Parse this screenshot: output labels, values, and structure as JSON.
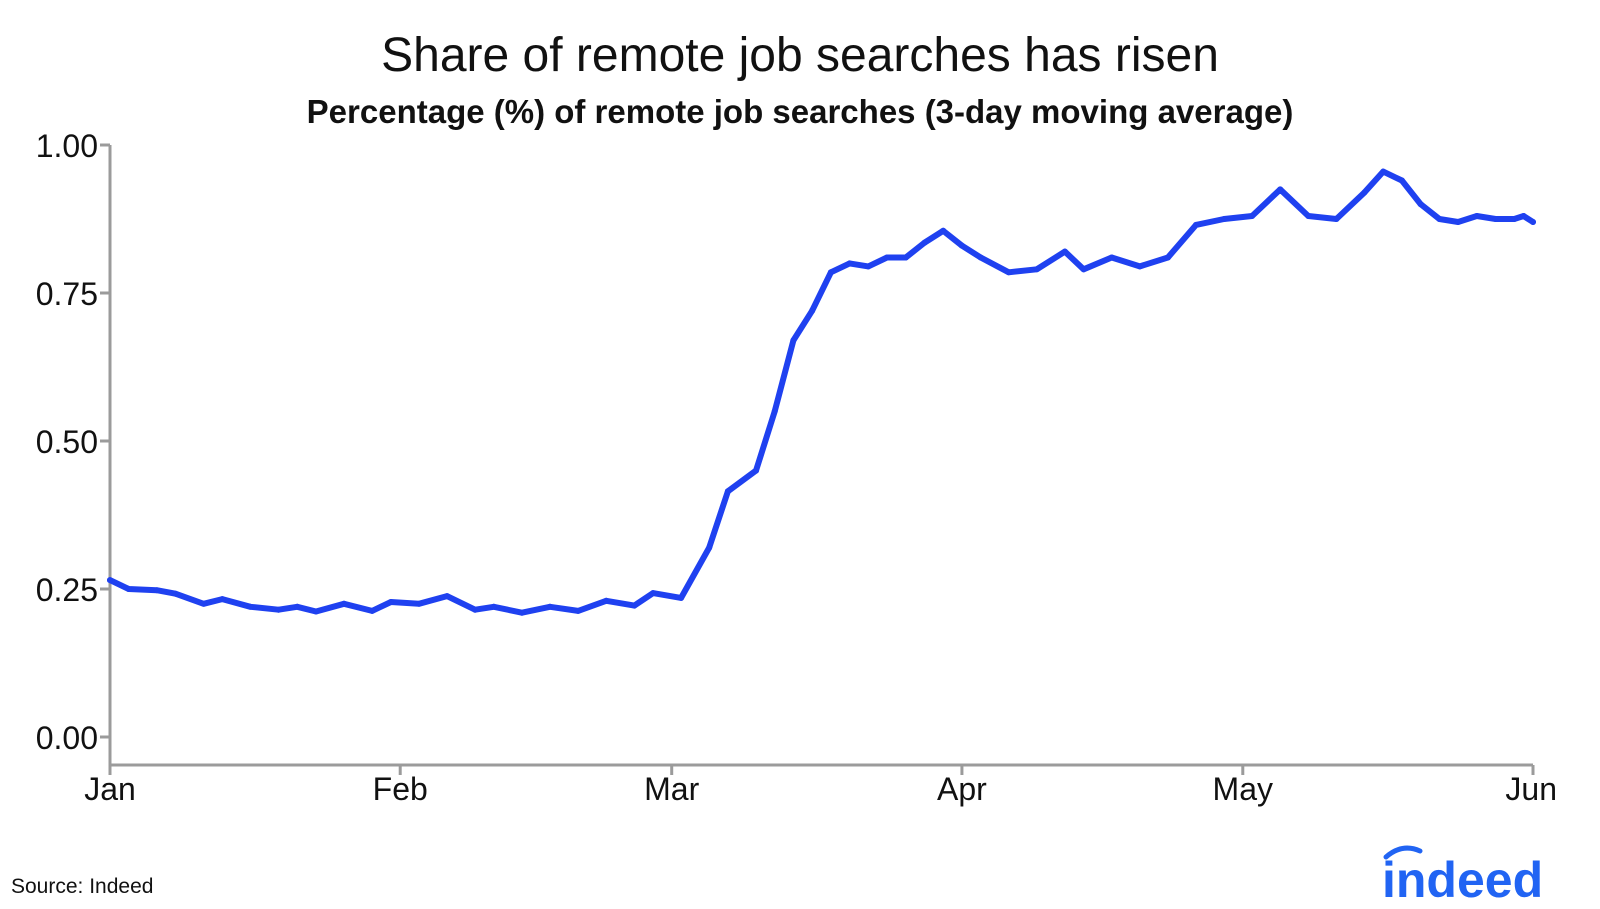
{
  "title": "Share of remote job searches has risen",
  "subtitle": "Percentage (%) of remote job searches (3-day moving average)",
  "source": "Source: Indeed",
  "logo_text": "indeed",
  "colors": {
    "line": "#1f41f0",
    "axis": "#9b9b9b",
    "text": "#111111",
    "logo": "#2164f3"
  },
  "chart_data": {
    "type": "line",
    "title": "Share of remote job searches has risen",
    "subtitle": "Percentage (%) of remote job searches (3-day moving average)",
    "xlabel": "",
    "ylabel": "",
    "xlim": [
      "Jan",
      "Jun"
    ],
    "ylim": [
      0,
      1.0
    ],
    "x_ticks": [
      "Jan",
      "Feb",
      "Mar",
      "Apr",
      "May",
      "Jun"
    ],
    "y_ticks": [
      "0.00",
      "0.25",
      "0.50",
      "0.75",
      "1.00"
    ],
    "grid": false,
    "legend": "none",
    "series": [
      {
        "name": "",
        "x": [
          "Jan 1",
          "Jan 3",
          "Jan 6",
          "Jan 8",
          "Jan 11",
          "Jan 13",
          "Jan 16",
          "Jan 19",
          "Jan 21",
          "Jan 23",
          "Jan 26",
          "Jan 29",
          "Jan 31",
          "Feb 3",
          "Feb 6",
          "Feb 9",
          "Feb 11",
          "Feb 14",
          "Feb 17",
          "Feb 20",
          "Feb 23",
          "Feb 26",
          "Feb 28",
          "Mar 2",
          "Mar 5",
          "Mar 7",
          "Mar 10",
          "Mar 12",
          "Mar 14",
          "Mar 16",
          "Mar 18",
          "Mar 20",
          "Mar 22",
          "Mar 24",
          "Mar 26",
          "Mar 28",
          "Mar 30",
          "Apr 1",
          "Apr 3",
          "Apr 6",
          "Apr 9",
          "Apr 12",
          "Apr 14",
          "Apr 17",
          "Apr 20",
          "Apr 23",
          "Apr 26",
          "Apr 29",
          "May 2",
          "May 5",
          "May 8",
          "May 11",
          "May 14",
          "May 16",
          "May 18",
          "May 20",
          "May 22",
          "May 24",
          "May 26",
          "May 28",
          "May 30",
          "May 31",
          "Jun 1"
        ],
        "values": [
          0.265,
          0.25,
          0.248,
          0.242,
          0.225,
          0.233,
          0.22,
          0.215,
          0.22,
          0.212,
          0.225,
          0.213,
          0.228,
          0.225,
          0.238,
          0.215,
          0.22,
          0.21,
          0.22,
          0.213,
          0.23,
          0.222,
          0.243,
          0.235,
          0.32,
          0.415,
          0.45,
          0.55,
          0.67,
          0.72,
          0.785,
          0.8,
          0.795,
          0.81,
          0.81,
          0.835,
          0.855,
          0.83,
          0.81,
          0.785,
          0.79,
          0.82,
          0.79,
          0.81,
          0.795,
          0.81,
          0.865,
          0.875,
          0.88,
          0.925,
          0.88,
          0.875,
          0.92,
          0.955,
          0.94,
          0.9,
          0.875,
          0.87,
          0.88,
          0.875,
          0.875,
          0.88,
          0.87
        ]
      }
    ]
  }
}
